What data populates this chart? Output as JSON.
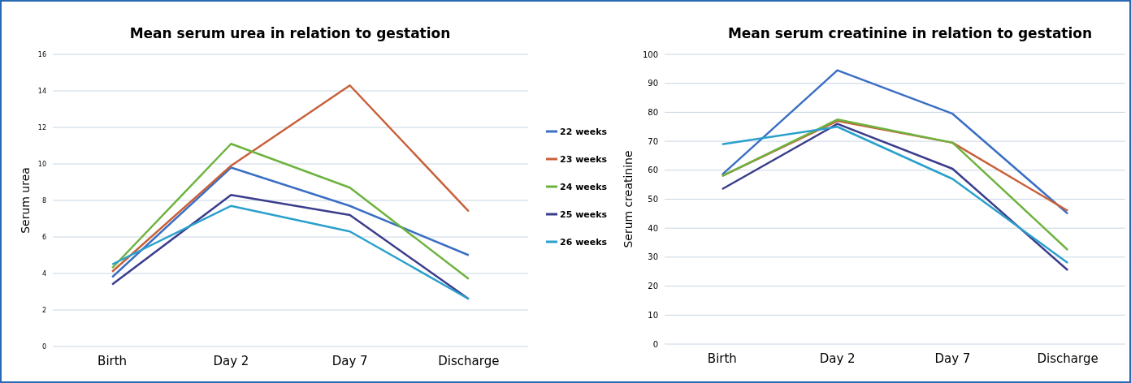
{
  "chart_data": [
    {
      "type": "line",
      "title": "Mean serum urea in relation to gestation",
      "ylabel": "Serum urea",
      "categories": [
        "Birth",
        "Day 2",
        "Day 7",
        "Discharge"
      ],
      "ylim": [
        0,
        16
      ],
      "yticks": [
        0,
        2,
        4,
        6,
        8,
        10,
        12,
        14,
        16
      ],
      "grid": "y",
      "legend": "right",
      "marker": "none",
      "series": [
        {
          "name": "22 weeks",
          "color": "#3a6fc4",
          "values": [
            3.8,
            9.8,
            7.7,
            5.0
          ]
        },
        {
          "name": "23 weeks",
          "color": "#c8603a",
          "values": [
            4.1,
            9.9,
            14.3,
            7.4
          ]
        },
        {
          "name": "24 weeks",
          "color": "#6db33f",
          "values": [
            4.3,
            11.1,
            8.7,
            3.7
          ]
        },
        {
          "name": "25 weeks",
          "color": "#3b3c8c",
          "values": [
            3.4,
            8.3,
            7.2,
            2.6
          ]
        },
        {
          "name": "26 weeks",
          "color": "#2aa0cc",
          "values": [
            4.5,
            7.7,
            6.3,
            2.6
          ]
        }
      ]
    },
    {
      "type": "line",
      "title": "Mean serum creatinine in relation to gestation",
      "ylabel": "Serum creatinine",
      "categories": [
        "Birth",
        "Day 2",
        "Day 7",
        "Discharge"
      ],
      "ylim": [
        0,
        100
      ],
      "yticks": [
        0,
        10,
        20,
        30,
        40,
        50,
        60,
        70,
        80,
        90,
        100
      ],
      "grid": "y",
      "marker": "none",
      "series": [
        {
          "color": "#3a6fc4",
          "values": [
            58.5,
            94.5,
            79.5,
            45
          ]
        },
        {
          "color": "#c8603a",
          "values": [
            58,
            77,
            69.5,
            46
          ]
        },
        {
          "color": "#6db33f",
          "values": [
            58,
            77.5,
            69.5,
            32.5
          ]
        },
        {
          "color": "#3b3c8c",
          "values": [
            53.5,
            76,
            60.5,
            25.5
          ]
        },
        {
          "color": "#2aa0cc",
          "values": [
            69,
            75,
            57,
            28
          ]
        }
      ]
    }
  ]
}
